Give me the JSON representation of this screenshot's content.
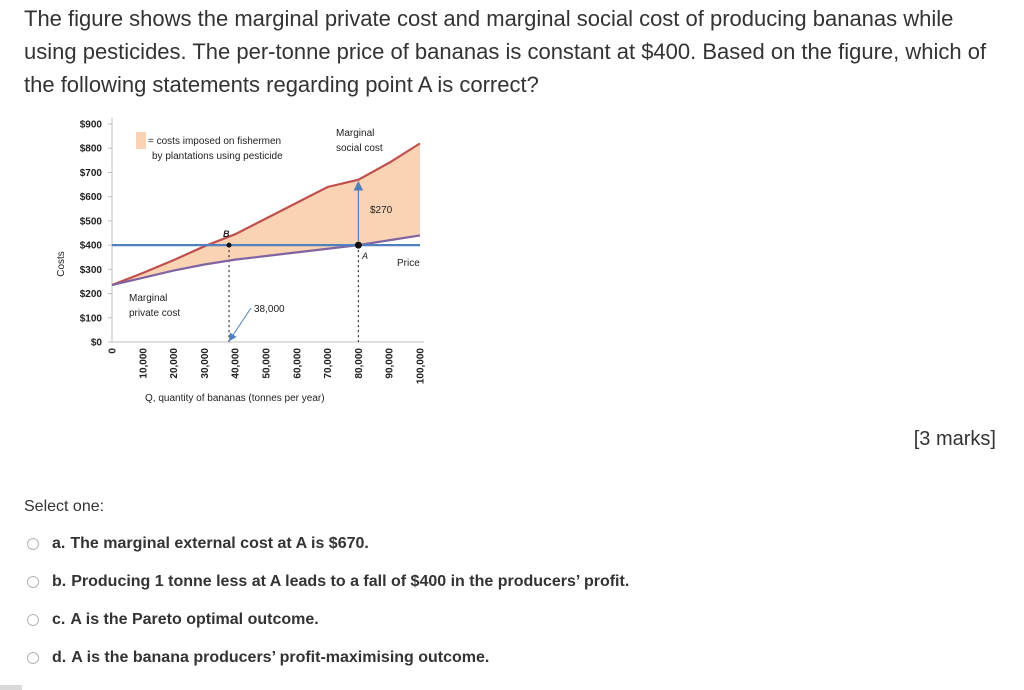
{
  "question": {
    "text": "The figure shows the marginal private cost and marginal social cost of producing bananas while using pesticides. The per-tonne price of bananas is constant at $400. Based on the figure, which of the following statements regarding point A is correct?"
  },
  "marks_label": "[3 marks]",
  "select_label": "Select one:",
  "options": [
    {
      "letter": "a.",
      "text": "The marginal external cost at A is $670."
    },
    {
      "letter": "b.",
      "text": "Producing 1 tonne less at A leads to a fall of $400 in the producers’ profit."
    },
    {
      "letter": "c.",
      "text": "A is the Pareto optimal outcome."
    },
    {
      "letter": "d.",
      "text": "A is the banana producers’ profit-maximising outcome."
    }
  ],
  "chart_data": {
    "type": "line",
    "xlabel": "Q, quantity of bananas (tonnes per year)",
    "ylabel": "Costs",
    "x_ticks": [
      "0",
      "10,000",
      "20,000",
      "30,000",
      "40,000",
      "50,000",
      "60,000",
      "70,000",
      "80,000",
      "90,000",
      "100,000"
    ],
    "y_ticks": [
      "$0",
      "$100",
      "$200",
      "$300",
      "$400",
      "$500",
      "$600",
      "$700",
      "$800",
      "$900"
    ],
    "xlim": [
      0,
      100000
    ],
    "ylim": [
      0,
      900
    ],
    "series": [
      {
        "name": "Marginal social cost",
        "x": [
          0,
          10000,
          20000,
          30000,
          40000,
          50000,
          60000,
          70000,
          80000,
          90000,
          100000
        ],
        "y": [
          235,
          285,
          338,
          395,
          445,
          510,
          575,
          640,
          670,
          740,
          820
        ]
      },
      {
        "name": "Marginal private cost",
        "x": [
          0,
          10000,
          20000,
          30000,
          40000,
          50000,
          60000,
          70000,
          80000,
          90000,
          100000
        ],
        "y": [
          235,
          265,
          295,
          320,
          340,
          355,
          370,
          385,
          400,
          420,
          440
        ]
      },
      {
        "name": "Price",
        "x": [
          0,
          100000
        ],
        "y": [
          400,
          400
        ]
      }
    ],
    "fill_legend": "= costs imposed on fishermen by plantations using pesticide",
    "annotations": {
      "point_a": "A",
      "point_b": "B",
      "gap_label": "$270",
      "quantity_label": "38,000",
      "msc_label": "Marginal social cost",
      "mpc_label": "Marginal private cost",
      "price_label": "Price"
    },
    "points": {
      "A": {
        "x": 80000,
        "y": 400
      },
      "B": {
        "x": 38000,
        "y": 400
      }
    },
    "colors": {
      "msc": "#c0504d",
      "mpc": "#8064a2",
      "price": "#4f81bd",
      "fill": "#f9d3b4"
    }
  }
}
